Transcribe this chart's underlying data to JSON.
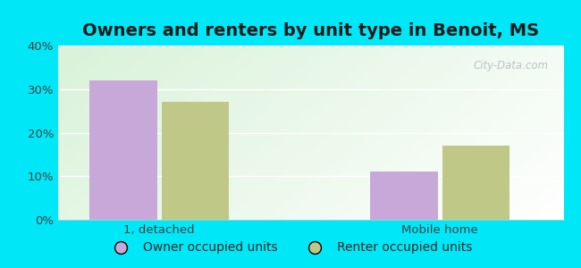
{
  "title": "Owners and renters by unit type in Benoit, MS",
  "categories": [
    "1, detached",
    "Mobile home"
  ],
  "owner_values": [
    32,
    11
  ],
  "renter_values": [
    27,
    17
  ],
  "owner_color": "#c8a8d8",
  "renter_color": "#c0c888",
  "background_outer": "#00e8f8",
  "background_inner_left": "#c8ecd0",
  "background_inner_right": "#f0fdf4",
  "background_inner_top": "#ddf5e8",
  "background_inner_bottom": "#f8fff8",
  "ylim": [
    0,
    40
  ],
  "yticks": [
    0,
    10,
    20,
    30,
    40
  ],
  "bar_width": 0.3,
  "legend_labels": [
    "Owner occupied units",
    "Renter occupied units"
  ],
  "watermark": "City-Data.com",
  "title_fontsize": 14,
  "tick_fontsize": 9.5,
  "legend_fontsize": 10,
  "x_positions": [
    0.5,
    1.75
  ],
  "xlim": [
    0.05,
    2.3
  ]
}
